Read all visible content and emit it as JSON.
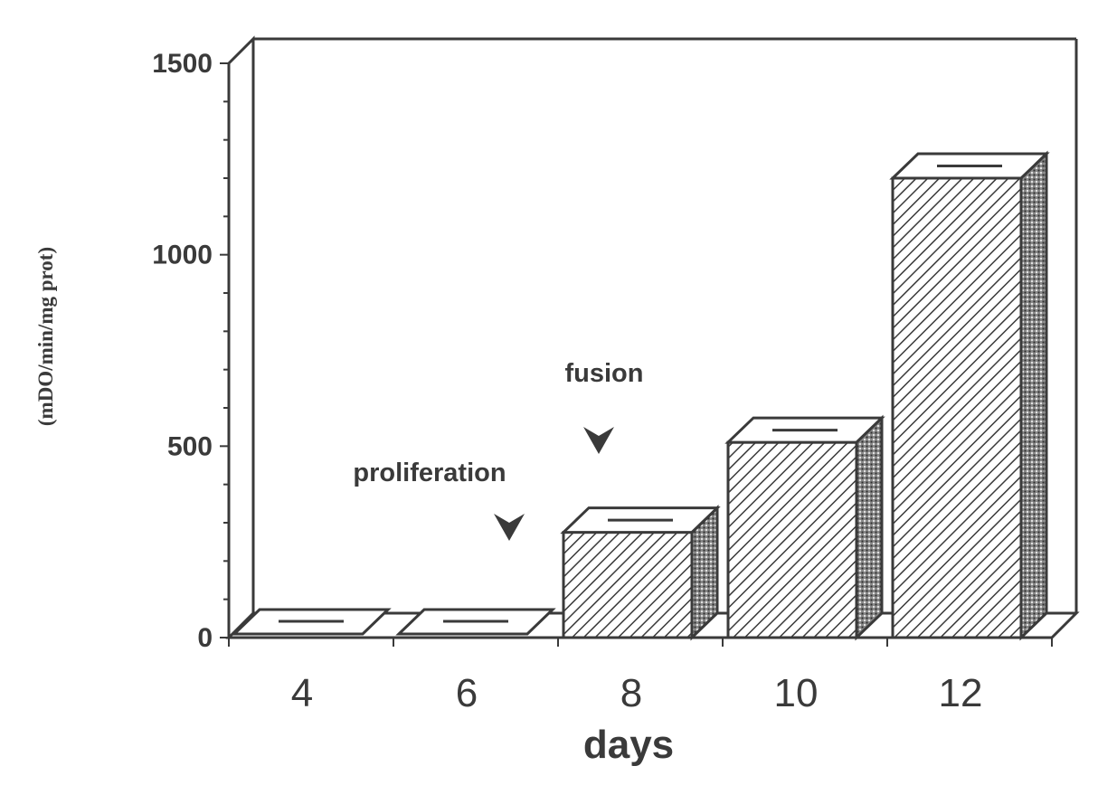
{
  "chart_data": {
    "type": "bar",
    "categories": [
      "4",
      "6",
      "8",
      "10",
      "12"
    ],
    "values": [
      0,
      0,
      275,
      510,
      1200
    ],
    "error_upper": [
      45,
      45,
      315,
      545,
      1250
    ],
    "xlabel": "days",
    "ylabel": "(mDO/min/mg prot)",
    "ylim": [
      0,
      1500
    ],
    "yticks": [
      "0",
      "500",
      "1000",
      "1500"
    ],
    "grid": false,
    "legend": "none",
    "annotations": [
      {
        "text": "proliferation",
        "arrow_category": "6"
      },
      {
        "text": "fusion",
        "arrow_category": "8"
      }
    ],
    "colors": {
      "ink": "#3a3a3a",
      "bar_fill": "#ffffff"
    }
  }
}
